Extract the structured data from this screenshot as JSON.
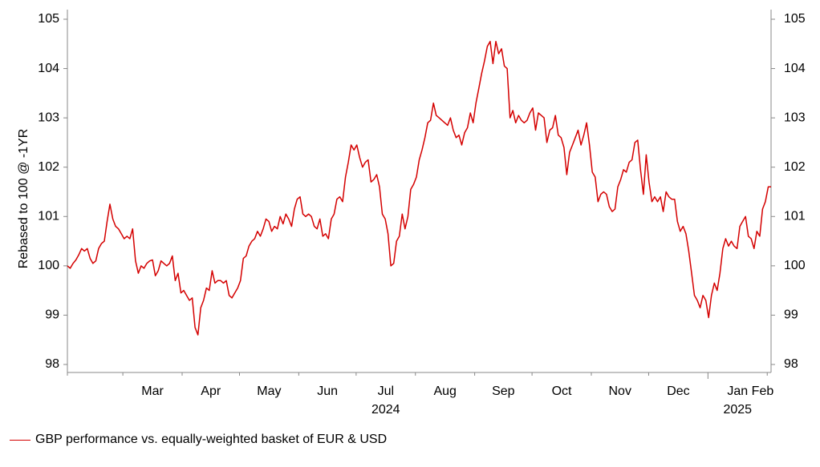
{
  "chart_data": {
    "type": "line",
    "title": "",
    "ylabel": "Rebased to 100 @ -1YR",
    "ylim": [
      98,
      105
    ],
    "yticks": [
      98,
      99,
      100,
      101,
      102,
      103,
      104,
      105
    ],
    "y_axis_both_sides": true,
    "grid": false,
    "legend_position": "bottom-left",
    "x_month_labels": [
      "Mar",
      "Apr",
      "May",
      "Jun",
      "Jul",
      "Aug",
      "Sep",
      "Oct",
      "Nov",
      "Dec",
      "Jan",
      "Feb"
    ],
    "x_year_labels": [
      {
        "label": "2024",
        "under": "Jul"
      },
      {
        "label": "2025",
        "under": "Jan"
      }
    ],
    "series": [
      {
        "name": "GBP performance vs. equally-weighted basket of EUR & USD",
        "color": "#d40000",
        "x_start": "2024-02-01",
        "x_end": "2025-02-03",
        "values": [
          100.0,
          99.95,
          100.05,
          100.12,
          100.22,
          100.35,
          100.3,
          100.35,
          100.15,
          100.05,
          100.1,
          100.35,
          100.45,
          100.5,
          100.9,
          101.25,
          100.95,
          100.8,
          100.75,
          100.65,
          100.55,
          100.6,
          100.55,
          100.75,
          100.1,
          99.85,
          100.0,
          99.95,
          100.05,
          100.1,
          100.12,
          99.8,
          99.9,
          100.1,
          100.05,
          100.0,
          100.05,
          100.2,
          99.7,
          99.85,
          99.45,
          99.5,
          99.4,
          99.3,
          99.35,
          98.75,
          98.6,
          99.15,
          99.3,
          99.55,
          99.5,
          99.9,
          99.65,
          99.7,
          99.7,
          99.65,
          99.7,
          99.4,
          99.35,
          99.45,
          99.55,
          99.7,
          100.15,
          100.2,
          100.4,
          100.5,
          100.55,
          100.7,
          100.6,
          100.75,
          100.95,
          100.9,
          100.7,
          100.8,
          100.75,
          101.0,
          100.85,
          101.05,
          100.95,
          100.8,
          101.15,
          101.35,
          101.4,
          101.05,
          101.0,
          101.05,
          101.0,
          100.8,
          100.75,
          100.95,
          100.6,
          100.65,
          100.55,
          100.95,
          101.05,
          101.35,
          101.4,
          101.3,
          101.8,
          102.1,
          102.45,
          102.35,
          102.45,
          102.2,
          102.0,
          102.1,
          102.15,
          101.7,
          101.75,
          101.85,
          101.6,
          101.05,
          100.95,
          100.65,
          100.0,
          100.05,
          100.5,
          100.6,
          101.05,
          100.75,
          101.0,
          101.55,
          101.65,
          101.8,
          102.15,
          102.35,
          102.6,
          102.9,
          102.95,
          103.3,
          103.05,
          103.0,
          102.95,
          102.9,
          102.85,
          103.0,
          102.75,
          102.6,
          102.65,
          102.45,
          102.7,
          102.8,
          103.1,
          102.9,
          103.3,
          103.6,
          103.9,
          104.15,
          104.45,
          104.55,
          104.1,
          104.55,
          104.3,
          104.4,
          104.05,
          104.0,
          103.0,
          103.15,
          102.9,
          103.05,
          102.95,
          102.9,
          102.95,
          103.1,
          103.2,
          102.75,
          103.1,
          103.05,
          103.0,
          102.5,
          102.75,
          102.8,
          103.05,
          102.65,
          102.6,
          102.4,
          101.85,
          102.3,
          102.45,
          102.6,
          102.75,
          102.45,
          102.65,
          102.9,
          102.45,
          101.9,
          101.8,
          101.3,
          101.45,
          101.5,
          101.45,
          101.2,
          101.1,
          101.15,
          101.6,
          101.75,
          101.95,
          101.9,
          102.1,
          102.15,
          102.5,
          102.55,
          101.95,
          101.45,
          102.25,
          101.7,
          101.3,
          101.4,
          101.3,
          101.4,
          101.1,
          101.5,
          101.4,
          101.35,
          101.35,
          100.9,
          100.7,
          100.8,
          100.65,
          100.3,
          99.85,
          99.4,
          99.3,
          99.15,
          99.4,
          99.3,
          98.95,
          99.4,
          99.65,
          99.5,
          99.85,
          100.35,
          100.55,
          100.4,
          100.5,
          100.4,
          100.35,
          100.8,
          100.9,
          101.0,
          100.6,
          100.55,
          100.35,
          100.7,
          100.6,
          101.15,
          101.3,
          101.6,
          101.6
        ]
      }
    ]
  }
}
